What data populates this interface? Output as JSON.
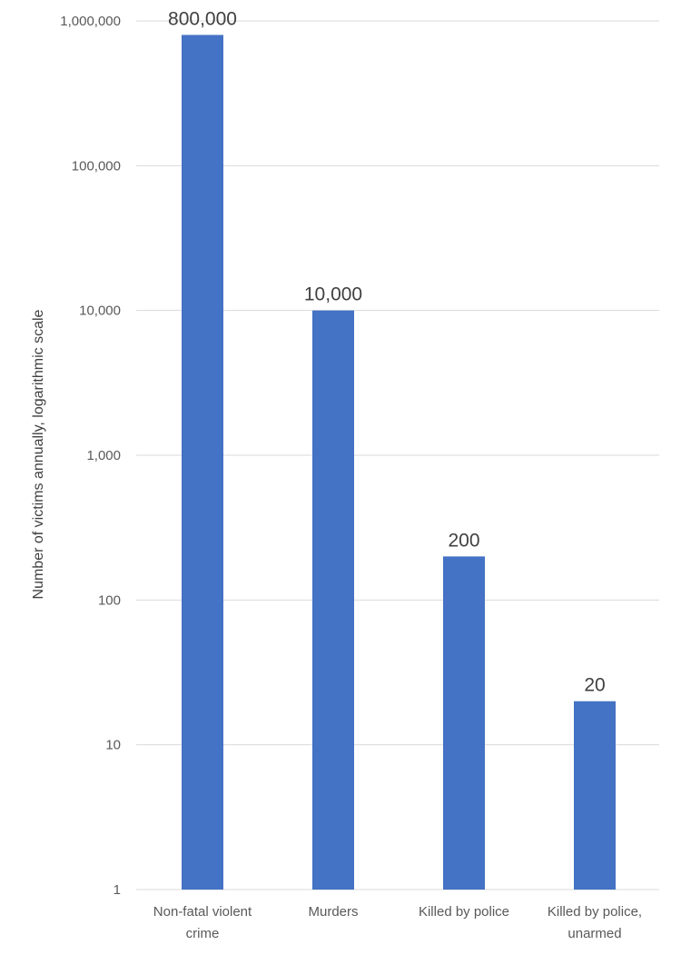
{
  "chart_data": {
    "type": "bar",
    "scale": "log",
    "title": "",
    "xlabel": "",
    "ylabel": "Number of victims annually, logarithmic scale",
    "ylim": [
      1,
      1000000
    ],
    "yticks": [
      1,
      10,
      100,
      1000,
      10000,
      100000,
      1000000
    ],
    "ytick_labels": [
      "1",
      "10",
      "100",
      "1,000",
      "10,000",
      "100,000",
      "1,000,000"
    ],
    "grid": true,
    "legend": "none",
    "categories": [
      [
        "Non-fatal violent",
        "crime"
      ],
      [
        "Murders"
      ],
      [
        "Killed by police"
      ],
      [
        "Killed by police,",
        "unarmed"
      ]
    ],
    "values": [
      800000,
      10000,
      200,
      20
    ],
    "data_labels": [
      "800,000",
      "10,000",
      "200",
      "20"
    ],
    "colors": {
      "bar": "#4472C4",
      "grid": "#D9D9D9"
    }
  }
}
